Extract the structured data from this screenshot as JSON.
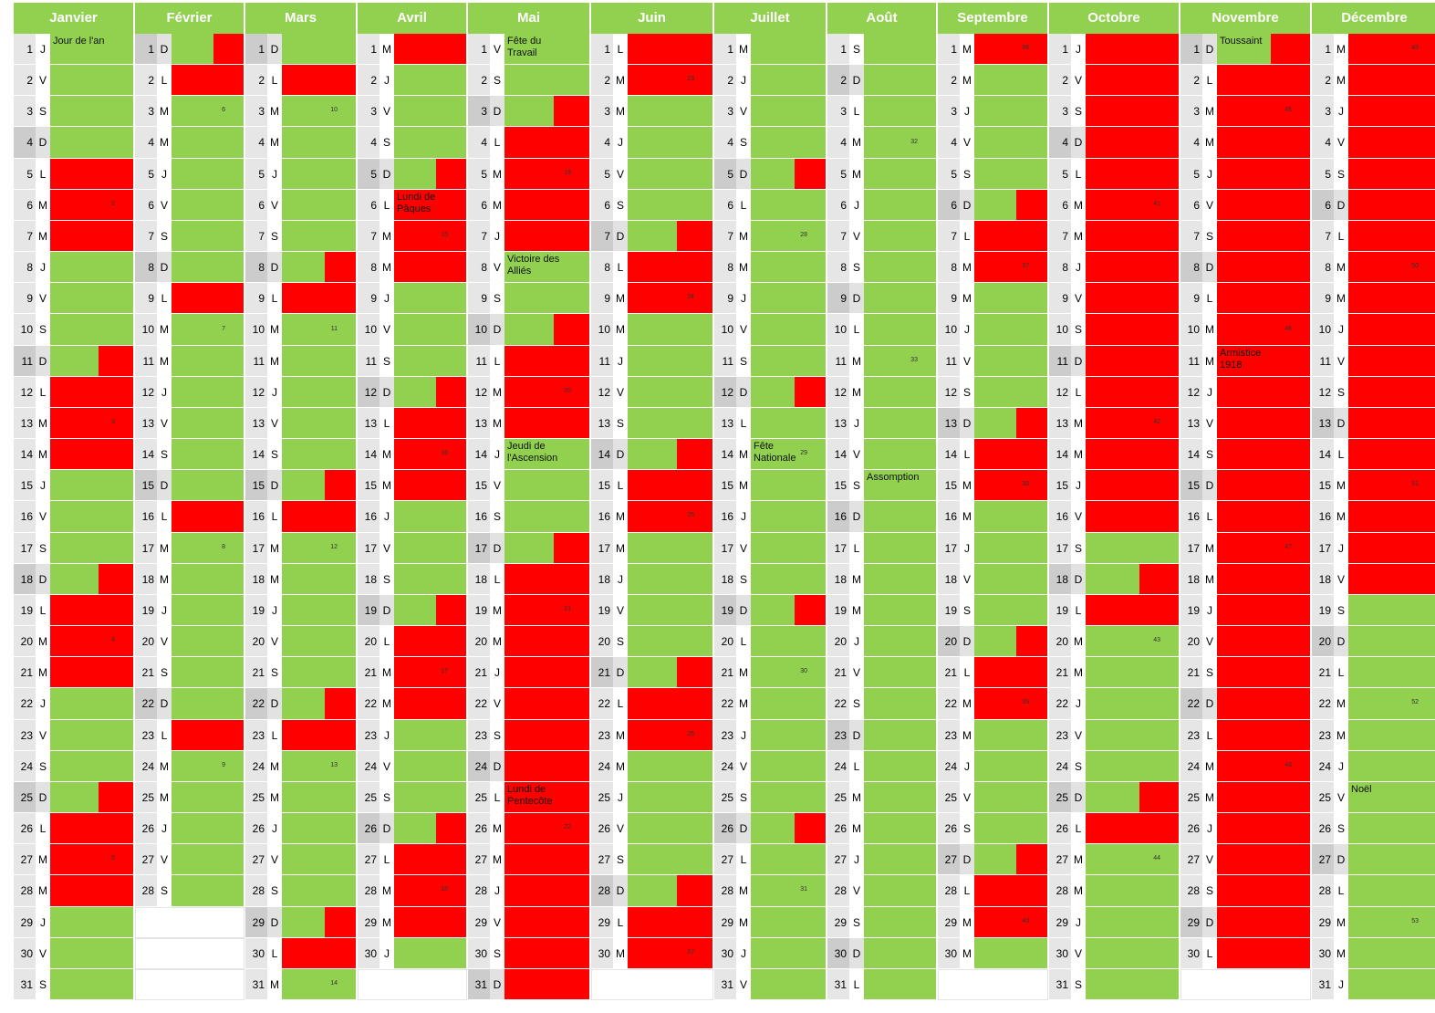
{
  "calendar": {
    "months": [
      {
        "name": "Janvier",
        "days": [
          1,
          2,
          3,
          4,
          5,
          6,
          7,
          8,
          9,
          10,
          11,
          12,
          13,
          14,
          15,
          16,
          17,
          18,
          19,
          20,
          21,
          22,
          23,
          24,
          25,
          26,
          27,
          28,
          29,
          30,
          31
        ],
        "weekdays": [
          "J",
          "V",
          "S",
          "D",
          "L",
          "M",
          "M",
          "J",
          "V",
          "S",
          "D",
          "L",
          "M",
          "M",
          "J",
          "V",
          "S",
          "D",
          "L",
          "M",
          "M",
          "J",
          "V",
          "S",
          "D",
          "L",
          "M",
          "M",
          "J",
          "V",
          "S"
        ],
        "fill": "ggggrrrggghrrrggghrrrggghrrrggg",
        "notes": {
          "1": "Jour de l'an"
        },
        "weeks": {
          "6": 2,
          "13": 3,
          "20": 4,
          "27": 5
        }
      },
      {
        "name": "Février",
        "days": [
          1,
          2,
          3,
          4,
          5,
          6,
          7,
          8,
          9,
          10,
          11,
          12,
          13,
          14,
          15,
          16,
          17,
          18,
          19,
          20,
          21,
          22,
          23,
          24,
          25,
          26,
          27,
          28
        ],
        "weekdays": [
          "D",
          "L",
          "M",
          "M",
          "J",
          "V",
          "S",
          "D",
          "L",
          "M",
          "M",
          "J",
          "V",
          "S",
          "D",
          "L",
          "M",
          "M",
          "J",
          "V",
          "S",
          "D",
          "L",
          "M",
          "M",
          "J",
          "V",
          "S"
        ],
        "fill": "hrggggggrggggggrggggggrggggg",
        "notes": {},
        "weeks": {
          "3": 6,
          "10": 7,
          "17": 8,
          "24": 9
        }
      },
      {
        "name": "Mars",
        "days": [
          1,
          2,
          3,
          4,
          5,
          6,
          7,
          8,
          9,
          10,
          11,
          12,
          13,
          14,
          15,
          16,
          17,
          18,
          19,
          20,
          21,
          22,
          23,
          24,
          25,
          26,
          27,
          28,
          29,
          30,
          31
        ],
        "weekdays": [
          "D",
          "L",
          "M",
          "M",
          "J",
          "V",
          "S",
          "D",
          "L",
          "M",
          "M",
          "J",
          "V",
          "S",
          "D",
          "L",
          "M",
          "M",
          "J",
          "V",
          "S",
          "D",
          "L",
          "M",
          "M",
          "J",
          "V",
          "S",
          "D",
          "L",
          "M"
        ],
        "fill": "grggggghrggggghrggggghrggggghrg",
        "notes": {},
        "weeks": {
          "3": 10,
          "10": 11,
          "17": 12,
          "24": 13,
          "31": 14
        }
      },
      {
        "name": "Avril",
        "days": [
          1,
          2,
          3,
          4,
          5,
          6,
          7,
          8,
          9,
          10,
          11,
          12,
          13,
          14,
          15,
          16,
          17,
          18,
          19,
          20,
          21,
          22,
          23,
          24,
          25,
          26,
          27,
          28,
          29,
          30
        ],
        "weekdays": [
          "M",
          "J",
          "V",
          "S",
          "D",
          "L",
          "M",
          "M",
          "J",
          "V",
          "S",
          "D",
          "L",
          "M",
          "M",
          "J",
          "V",
          "S",
          "D",
          "L",
          "M",
          "M",
          "J",
          "V",
          "S",
          "D",
          "L",
          "M",
          "M",
          "J"
        ],
        "fill": "rggghrrrggghrrrggghrrrggghrrrg",
        "notes": {
          "6": "Lundi de Pâques"
        },
        "weeks": {
          "7": 15,
          "14": 16,
          "21": 17,
          "28": 18
        }
      },
      {
        "name": "Mai",
        "days": [
          1,
          2,
          3,
          4,
          5,
          6,
          7,
          8,
          9,
          10,
          11,
          12,
          13,
          14,
          15,
          16,
          17,
          18,
          19,
          20,
          21,
          22,
          23,
          24,
          25,
          26,
          27,
          28,
          29,
          30,
          31
        ],
        "weekdays": [
          "V",
          "S",
          "D",
          "L",
          "M",
          "M",
          "J",
          "V",
          "S",
          "D",
          "L",
          "M",
          "M",
          "J",
          "V",
          "S",
          "D",
          "L",
          "M",
          "M",
          "J",
          "V",
          "S",
          "D",
          "L",
          "M",
          "M",
          "J",
          "V",
          "S",
          "D"
        ],
        "fill": "gghrrrrgghrrrggghrrrrrrrrrrrrrr",
        "notes": {
          "1": "Fête du Travail",
          "8": "Victoire des Alliés",
          "14": "Jeudi de l'Ascension",
          "25": "Lundi de Pentecôte"
        },
        "weeks": {
          "5": 19,
          "12": 20,
          "19": 21,
          "26": 22
        }
      },
      {
        "name": "Juin",
        "days": [
          1,
          2,
          3,
          4,
          5,
          6,
          7,
          8,
          9,
          10,
          11,
          12,
          13,
          14,
          15,
          16,
          17,
          18,
          19,
          20,
          21,
          22,
          23,
          24,
          25,
          26,
          27,
          28,
          29,
          30
        ],
        "weekdays": [
          "L",
          "M",
          "M",
          "J",
          "V",
          "S",
          "D",
          "L",
          "M",
          "M",
          "J",
          "V",
          "S",
          "D",
          "L",
          "M",
          "M",
          "J",
          "V",
          "S",
          "D",
          "L",
          "M",
          "M",
          "J",
          "V",
          "S",
          "D",
          "L",
          "M"
        ],
        "fill": "rrgggghrrgggghrrgggghrrgggghrr",
        "notes": {},
        "weeks": {
          "2": 23,
          "9": 24,
          "16": 25,
          "23": 26,
          "30": 27
        }
      },
      {
        "name": "Juillet",
        "days": [
          1,
          2,
          3,
          4,
          5,
          6,
          7,
          8,
          9,
          10,
          11,
          12,
          13,
          14,
          15,
          16,
          17,
          18,
          19,
          20,
          21,
          22,
          23,
          24,
          25,
          26,
          27,
          28,
          29,
          30,
          31
        ],
        "weekdays": [
          "M",
          "J",
          "V",
          "S",
          "D",
          "L",
          "M",
          "M",
          "J",
          "V",
          "S",
          "D",
          "L",
          "M",
          "M",
          "J",
          "V",
          "S",
          "D",
          "L",
          "M",
          "M",
          "J",
          "V",
          "S",
          "D",
          "L",
          "M",
          "M",
          "J",
          "V"
        ],
        "fill": "gggghgggggghgggggghgggggghggggg",
        "notes": {
          "14": "Fête Nationale"
        },
        "weeks": {
          "7": 28,
          "14": 29,
          "21": 30,
          "28": 31
        }
      },
      {
        "name": "Août",
        "days": [
          1,
          2,
          3,
          4,
          5,
          6,
          7,
          8,
          9,
          10,
          11,
          12,
          13,
          14,
          15,
          16,
          17,
          18,
          19,
          20,
          21,
          22,
          23,
          24,
          25,
          26,
          27,
          28,
          29,
          30,
          31
        ],
        "weekdays": [
          "S",
          "D",
          "L",
          "M",
          "M",
          "J",
          "V",
          "S",
          "D",
          "L",
          "M",
          "M",
          "J",
          "V",
          "S",
          "D",
          "L",
          "M",
          "M",
          "J",
          "V",
          "S",
          "D",
          "L",
          "M",
          "M",
          "J",
          "V",
          "S",
          "D",
          "L"
        ],
        "fill": "ggggggggggggggggggggggggggggggg",
        "notes": {
          "15": "Assomption"
        },
        "weeks": {
          "4": 32,
          "11": 33
        }
      },
      {
        "name": "Septembre",
        "days": [
          1,
          2,
          3,
          4,
          5,
          6,
          7,
          8,
          9,
          10,
          11,
          12,
          13,
          14,
          15,
          16,
          17,
          18,
          19,
          20,
          21,
          22,
          23,
          24,
          25,
          26,
          27,
          28,
          29,
          30
        ],
        "weekdays": [
          "M",
          "M",
          "J",
          "V",
          "S",
          "D",
          "L",
          "M",
          "M",
          "J",
          "V",
          "S",
          "D",
          "L",
          "M",
          "M",
          "J",
          "V",
          "S",
          "D",
          "L",
          "M",
          "M",
          "J",
          "V",
          "S",
          "D",
          "L",
          "M",
          "M"
        ],
        "fill": "rgggghrrgggghrrgggghrrgggghrrg",
        "notes": {},
        "weeks": {
          "1": 36,
          "8": 37,
          "15": 38,
          "22": 39,
          "29": 40
        }
      },
      {
        "name": "Octobre",
        "days": [
          1,
          2,
          3,
          4,
          5,
          6,
          7,
          8,
          9,
          10,
          11,
          12,
          13,
          14,
          15,
          16,
          17,
          18,
          19,
          20,
          21,
          22,
          23,
          24,
          25,
          26,
          27,
          28,
          29,
          30,
          31
        ],
        "weekdays": [
          "J",
          "V",
          "S",
          "D",
          "L",
          "M",
          "M",
          "J",
          "V",
          "S",
          "D",
          "L",
          "M",
          "M",
          "J",
          "V",
          "S",
          "D",
          "L",
          "M",
          "M",
          "J",
          "V",
          "S",
          "D",
          "L",
          "M",
          "M",
          "J",
          "V",
          "S"
        ],
        "fill": "rrrrrrrrrrrrrrrrghrggggghrggggg",
        "notes": {},
        "weeks": {
          "6": 41,
          "13": 42,
          "20": 43,
          "27": 44
        }
      },
      {
        "name": "Novembre",
        "days": [
          1,
          2,
          3,
          4,
          5,
          6,
          7,
          8,
          9,
          10,
          11,
          12,
          13,
          14,
          15,
          16,
          17,
          18,
          19,
          20,
          21,
          22,
          23,
          24,
          25,
          26,
          27,
          28,
          29,
          30
        ],
        "weekdays": [
          "D",
          "L",
          "M",
          "M",
          "J",
          "V",
          "S",
          "D",
          "L",
          "M",
          "M",
          "J",
          "V",
          "S",
          "D",
          "L",
          "M",
          "M",
          "J",
          "V",
          "S",
          "D",
          "L",
          "M",
          "M",
          "J",
          "V",
          "S",
          "D",
          "L"
        ],
        "fill": "hrrrrrrrrrrrrrrrrrrrrrrrrrrrrr",
        "notes": {
          "1": "Toussaint",
          "11": "Armistice 1918"
        },
        "weeks": {
          "3": 45,
          "10": 46,
          "17": 47,
          "24": 48
        }
      },
      {
        "name": "Décembre",
        "days": [
          1,
          2,
          3,
          4,
          5,
          6,
          7,
          8,
          9,
          10,
          11,
          12,
          13,
          14,
          15,
          16,
          17,
          18,
          19,
          20,
          21,
          22,
          23,
          24,
          25,
          26,
          27,
          28,
          29,
          30,
          31
        ],
        "weekdays": [
          "M",
          "M",
          "J",
          "V",
          "S",
          "D",
          "L",
          "M",
          "M",
          "J",
          "V",
          "S",
          "D",
          "L",
          "M",
          "M",
          "J",
          "V",
          "S",
          "D",
          "L",
          "M",
          "M",
          "J",
          "V",
          "S",
          "D",
          "L",
          "M",
          "M",
          "J"
        ],
        "fill": "rrrrrrrrrrrrrrrrrrggggggggggggg",
        "notes": {
          "25": "Noël"
        },
        "weeks": {
          "1": 49,
          "8": 50,
          "15": 51,
          "22": 52,
          "29": 53
        }
      }
    ]
  }
}
